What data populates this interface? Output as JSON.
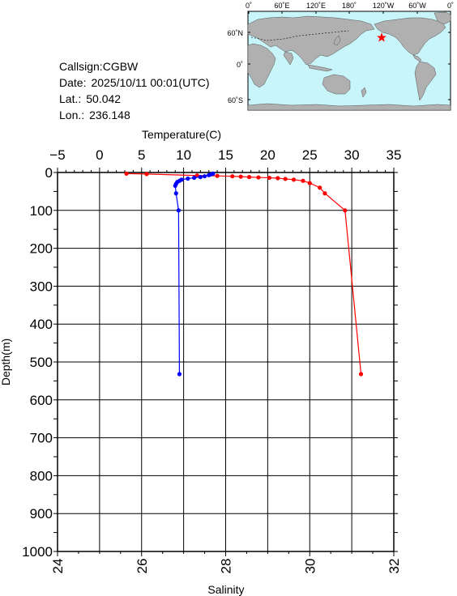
{
  "station": {
    "callsign_label": "Callsign:",
    "callsign": "CGBW",
    "date_label": "Date:",
    "date": "2025/10/11 00:01(UTC)",
    "lat_label": "Lat.:",
    "lat": "50.042",
    "lon_label": "Lon.:",
    "lon": "236.148"
  },
  "map": {
    "top_labels": [
      "0˚",
      "60˚E",
      "120˚E",
      "180˚",
      "120˚W",
      "60˚W",
      "0˚"
    ],
    "left_labels": [
      "60˚N",
      "0˚",
      "60˚S"
    ],
    "land_color": "#b0b0b0",
    "ocean_color": "#c8f5fa",
    "marker_color": "#ff0000"
  },
  "chart_data": {
    "type": "line",
    "ylabel": "Depth(m)",
    "ylim": [
      1000,
      0
    ],
    "yticks": [
      "0",
      "100",
      "200",
      "300",
      "400",
      "500",
      "600",
      "700",
      "800",
      "900",
      "1000"
    ],
    "top_axis": {
      "label": "Temperature(C)",
      "lim": [
        -5,
        35
      ],
      "ticks": [
        "−5",
        "0",
        "5",
        "10",
        "15",
        "20",
        "25",
        "30",
        "35"
      ]
    },
    "bottom_axis": {
      "label": "Salinity",
      "lim": [
        24,
        32
      ],
      "ticks": [
        "24",
        "26",
        "28",
        "30",
        "32"
      ]
    },
    "grid": true,
    "series": [
      {
        "axis": "temperature",
        "color": "#ff0000",
        "points": [
          [
            3.2,
            3
          ],
          [
            5.6,
            4
          ],
          [
            11.6,
            8
          ],
          [
            14.0,
            9
          ],
          [
            15.8,
            10
          ],
          [
            16.8,
            11
          ],
          [
            17.8,
            12
          ],
          [
            18.9,
            13
          ],
          [
            20.2,
            14
          ],
          [
            21.2,
            15
          ],
          [
            22.1,
            17
          ],
          [
            23.1,
            19
          ],
          [
            24.2,
            22
          ],
          [
            25.0,
            28
          ],
          [
            26.2,
            40
          ],
          [
            26.8,
            55
          ],
          [
            29.2,
            100
          ],
          [
            31.1,
            532
          ]
        ]
      },
      {
        "axis": "salinity",
        "color": "#0000ff",
        "points": [
          [
            27.7,
            3
          ],
          [
            27.65,
            5
          ],
          [
            27.6,
            7
          ],
          [
            27.5,
            10
          ],
          [
            27.4,
            12
          ],
          [
            27.25,
            14
          ],
          [
            27.1,
            16
          ],
          [
            26.95,
            19
          ],
          [
            26.9,
            22
          ],
          [
            26.85,
            25
          ],
          [
            26.82,
            30
          ],
          [
            26.8,
            35
          ],
          [
            26.82,
            55
          ],
          [
            26.88,
            100
          ],
          [
            26.9,
            532
          ]
        ]
      }
    ]
  }
}
